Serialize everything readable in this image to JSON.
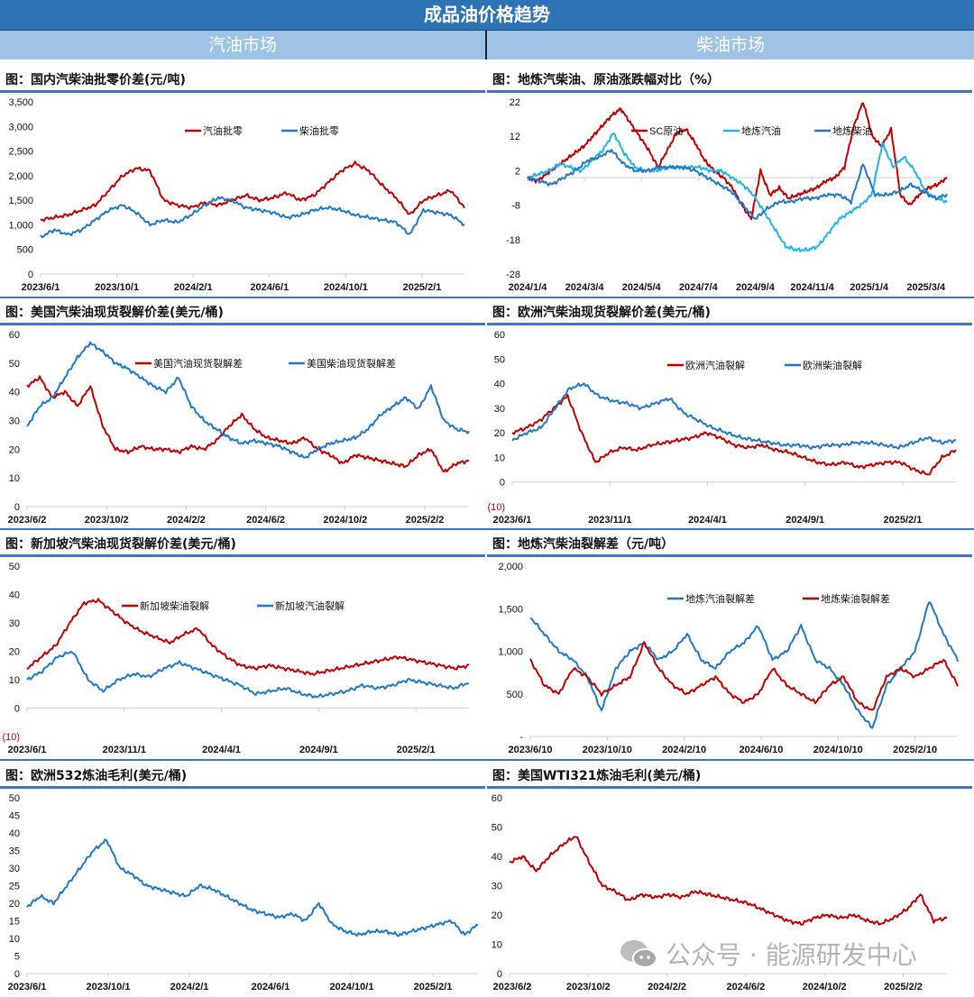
{
  "header": {
    "title": "成品油价格趋势",
    "left_section": "汽油市场",
    "right_section": "柴油市场"
  },
  "watermark": "公众号 · 能源研发中心",
  "colors": {
    "red": "#C00000",
    "blue": "#1F78C8",
    "light_blue": "#1EB4F0",
    "header": "#2E74B5",
    "subheader": "#9DC3E6"
  },
  "chart_data": [
    {
      "type": "line",
      "title": "图：国内汽柴油批零价差(元/吨)",
      "x_start": "2023/6/1",
      "x_end": "2025/3/31",
      "xticks": [
        "2023/6/1",
        "2023/10/1",
        "2024/2/1",
        "2024/6/1",
        "2024/10/1",
        "2025/2/1"
      ],
      "ylim": [
        0,
        3500
      ],
      "yticks": [
        "0",
        "500",
        "1,000",
        "1,500",
        "2,000",
        "2,500",
        "3,000",
        "3,500"
      ],
      "ytick_values": [
        0,
        500,
        1000,
        1500,
        2000,
        2500,
        3000,
        3500
      ],
      "series": [
        {
          "name": "汽油批零",
          "color": "#C00000",
          "values": [
            1100,
            1150,
            1200,
            1300,
            1400,
            1700,
            2000,
            2150,
            2100,
            1500,
            1400,
            1350,
            1450,
            1400,
            1500,
            1600,
            1500,
            1550,
            1650,
            1500,
            1600,
            1850,
            2100,
            2250,
            2100,
            1800,
            1550,
            1200,
            1500,
            1600,
            1700,
            1350
          ]
        },
        {
          "name": "柴油批零",
          "color": "#1F78C8",
          "values": [
            750,
            900,
            800,
            900,
            1100,
            1300,
            1400,
            1250,
            1000,
            1100,
            1050,
            1200,
            1400,
            1550,
            1500,
            1350,
            1300,
            1250,
            1150,
            1200,
            1300,
            1350,
            1300,
            1200,
            1150,
            1100,
            1050,
            800,
            1300,
            1250,
            1200,
            1000
          ]
        }
      ]
    },
    {
      "type": "line",
      "title": "图：地炼汽柴油、原油涨跌幅对比（%）",
      "x_start": "2024/1/4",
      "x_end": "2025/4/10",
      "xticks": [
        "2024/1/4",
        "2024/3/4",
        "2024/5/4",
        "2024/7/4",
        "2024/9/4",
        "2024/11/4",
        "2025/1/4",
        "2025/3/4"
      ],
      "ylim": [
        -28,
        22
      ],
      "yticks": [
        "-28",
        "-18",
        "-8",
        "2",
        "12",
        "22"
      ],
      "ytick_values": [
        -28,
        -18,
        -8,
        2,
        12,
        22
      ],
      "series": [
        {
          "name": "SC原油",
          "color": "#C00000",
          "values": [
            0,
            -1,
            1,
            3,
            5,
            7,
            9,
            12,
            15,
            18,
            20,
            16,
            12,
            8,
            3,
            8,
            13,
            14,
            10,
            5,
            2,
            0,
            -3,
            -8,
            -12,
            2,
            -5,
            -3,
            -6,
            -5,
            -4,
            -3,
            -1,
            0,
            3,
            15,
            22,
            12,
            9,
            14,
            -5,
            -8,
            -5,
            -3,
            -2,
            0
          ]
        },
        {
          "name": "地炼汽油",
          "color": "#1EB4F0",
          "values": [
            0,
            1,
            2,
            4,
            3,
            2,
            5,
            8,
            13,
            7,
            3,
            2,
            2,
            3,
            3,
            3,
            3,
            2,
            2,
            0,
            -2,
            -5,
            -10,
            -15,
            -20,
            -21,
            -21,
            -20,
            -16,
            -12,
            -10,
            -8,
            -5,
            10,
            3,
            6,
            2,
            -4,
            -6,
            -7
          ]
        },
        {
          "name": "地炼柴油",
          "color": "#1F78C8",
          "values": [
            0,
            -1,
            -2,
            0,
            2,
            5,
            6,
            8,
            4,
            2,
            2,
            3,
            3,
            3,
            2,
            0,
            -2,
            -4,
            -8,
            -12,
            -9,
            -7,
            -7,
            -6,
            -6,
            -5,
            -5,
            -7,
            4,
            -5,
            -5,
            -4,
            -2,
            -4,
            -6,
            -5
          ]
        }
      ]
    },
    {
      "type": "line",
      "title": "图：美国汽柴油现货裂解价差(美元/桶)",
      "x_start": "2023/6/2",
      "x_end": "2025/4/1",
      "xticks": [
        "2023/6/2",
        "2023/10/2",
        "2024/2/2",
        "2024/6/2",
        "2024/10/2",
        "2025/2/2"
      ],
      "ylim": [
        0,
        60
      ],
      "yticks": [
        "0",
        "10",
        "20",
        "30",
        "40",
        "50",
        "60"
      ],
      "ytick_values": [
        0,
        10,
        20,
        30,
        40,
        50,
        60
      ],
      "series": [
        {
          "name": "美国汽油现货裂解差",
          "color": "#C00000",
          "values": [
            42,
            45,
            38,
            40,
            35,
            42,
            28,
            20,
            19,
            21,
            20,
            20,
            19,
            21,
            20,
            23,
            28,
            32,
            27,
            24,
            23,
            22,
            24,
            20,
            18,
            15,
            18,
            17,
            16,
            15,
            14,
            18,
            20,
            12,
            15,
            16
          ]
        },
        {
          "name": "美国柴油现货裂解差",
          "color": "#1F78C8",
          "values": [
            28,
            35,
            38,
            45,
            52,
            57,
            54,
            50,
            48,
            45,
            42,
            40,
            45,
            35,
            30,
            27,
            24,
            22,
            23,
            22,
            21,
            19,
            17,
            20,
            22,
            23,
            24,
            27,
            32,
            35,
            38,
            34,
            42,
            30,
            27,
            26
          ]
        }
      ]
    },
    {
      "type": "line",
      "title": "图：欧洲汽柴油现货裂解价差(美元/桶)",
      "x_start": "2023/6/1",
      "x_end": "2025/3/31",
      "xticks": [
        "2023/6/1",
        "2023/11/1",
        "2024/4/1",
        "2024/9/1",
        "2025/2/1"
      ],
      "ylim": [
        -10,
        60
      ],
      "yticks": [
        "(10)",
        "0",
        "10",
        "20",
        "30",
        "40",
        "50",
        "60"
      ],
      "ytick_values": [
        -10,
        0,
        10,
        20,
        30,
        40,
        50,
        60
      ],
      "series": [
        {
          "name": "欧洲汽油裂解",
          "color": "#C00000",
          "values": [
            20,
            22,
            25,
            30,
            35,
            20,
            8,
            12,
            14,
            13,
            15,
            16,
            17,
            18,
            20,
            18,
            15,
            14,
            15,
            13,
            12,
            10,
            8,
            7,
            8,
            6,
            7,
            8,
            8,
            5,
            3,
            10,
            13
          ]
        },
        {
          "name": "欧洲柴油裂解",
          "color": "#1F78C8",
          "values": [
            17,
            20,
            22,
            30,
            38,
            40,
            35,
            33,
            32,
            30,
            32,
            34,
            28,
            25,
            22,
            20,
            18,
            17,
            16,
            15,
            15,
            14,
            15,
            15,
            16,
            16,
            15,
            14,
            16,
            18,
            16,
            17
          ]
        }
      ]
    },
    {
      "type": "line",
      "title": "图：新加坡汽柴油现货裂解价差(美元/桶)",
      "x_start": "2023/6/1",
      "x_end": "2025/3/31",
      "xticks": [
        "2023/6/1",
        "2023/11/1",
        "2024/4/1",
        "2024/9/1",
        "2025/2/1"
      ],
      "ylim": [
        -10,
        50
      ],
      "yticks": [
        "(10)",
        "0",
        "10",
        "20",
        "30",
        "40",
        "50"
      ],
      "ytick_values": [
        -10,
        0,
        10,
        20,
        30,
        40,
        50
      ],
      "series": [
        {
          "name": "新加坡柴油裂解",
          "color": "#C00000",
          "values": [
            14,
            18,
            22,
            30,
            37,
            38,
            34,
            30,
            27,
            25,
            23,
            26,
            28,
            22,
            18,
            15,
            14,
            15,
            14,
            13,
            12,
            13,
            14,
            15,
            16,
            17,
            18,
            17,
            16,
            15,
            14,
            15
          ]
        },
        {
          "name": "新加坡汽油裂解",
          "color": "#1F78C8",
          "values": [
            10,
            13,
            18,
            20,
            10,
            6,
            10,
            12,
            11,
            14,
            16,
            14,
            12,
            10,
            8,
            5,
            6,
            7,
            5,
            4,
            5,
            6,
            8,
            7,
            8,
            10,
            9,
            8,
            7,
            9
          ]
        }
      ]
    },
    {
      "type": "line",
      "title": "图：地炼汽柴油裂解差（元/吨）",
      "x_start": "2023/6/10",
      "x_end": "2025/3/20",
      "xticks": [
        "2023/6/10",
        "2023/10/10",
        "2024/2/10",
        "2024/6/10",
        "2024/10/10",
        "2025/2/10"
      ],
      "ylim": [
        0,
        2000
      ],
      "yticks": [
        "-",
        "500",
        "1,000",
        "1,500",
        "2,000"
      ],
      "ytick_values": [
        0,
        500,
        1000,
        1500,
        2000
      ],
      "series": [
        {
          "name": "地炼汽油裂解差",
          "color": "#1F78C8",
          "values": [
            1400,
            1200,
            1000,
            900,
            700,
            300,
            800,
            1000,
            1100,
            900,
            1000,
            1200,
            900,
            800,
            1000,
            1100,
            1300,
            900,
            1000,
            1300,
            900,
            800,
            600,
            300,
            100,
            600,
            800,
            1000,
            1600,
            1200,
            900
          ]
        },
        {
          "name": "地炼柴油裂解差",
          "color": "#C00000",
          "values": [
            900,
            600,
            500,
            800,
            700,
            500,
            600,
            700,
            1100,
            800,
            600,
            500,
            600,
            700,
            500,
            400,
            500,
            800,
            600,
            500,
            400,
            600,
            700,
            400,
            300,
            700,
            800,
            700,
            800,
            900,
            600
          ]
        }
      ]
    },
    {
      "type": "line",
      "title": "图：欧洲532炼油毛利(美元/桶)",
      "x_start": "2023/6/1",
      "x_end": "2025/3/31",
      "xticks": [
        "2023/6/1",
        "2023/10/1",
        "2024/2/1",
        "2024/6/1",
        "2024/10/1",
        "2025/2/1"
      ],
      "ylim": [
        0,
        50
      ],
      "yticks": [
        "0",
        "5",
        "10",
        "15",
        "20",
        "25",
        "30",
        "35",
        "40",
        "45",
        "50"
      ],
      "ytick_values": [
        0,
        5,
        10,
        15,
        20,
        25,
        30,
        35,
        40,
        45,
        50
      ],
      "series": [
        {
          "color": "#1F78C8",
          "values": [
            19,
            22,
            20,
            25,
            30,
            35,
            38,
            30,
            28,
            25,
            24,
            23,
            22,
            25,
            24,
            22,
            20,
            18,
            17,
            16,
            17,
            15,
            20,
            14,
            12,
            11,
            12,
            12,
            11,
            12,
            13,
            14,
            15,
            11,
            14
          ]
        }
      ]
    },
    {
      "type": "line",
      "title": "图：美国WTI321炼油毛利(美元/桶)",
      "x_start": "2023/6/2",
      "x_end": "2025/3/20",
      "xticks": [
        "2023/6/2",
        "2023/10/2",
        "2024/2/2",
        "2024/6/2",
        "2024/10/2",
        "2025/2/2"
      ],
      "ylim": [
        0,
        60
      ],
      "yticks": [
        "0",
        "10",
        "20",
        "30",
        "40",
        "50",
        "60"
      ],
      "ytick_values": [
        0,
        10,
        20,
        30,
        40,
        50,
        60
      ],
      "series": [
        {
          "color": "#C00000",
          "values": [
            38,
            40,
            35,
            40,
            44,
            47,
            38,
            30,
            28,
            25,
            27,
            26,
            27,
            26,
            28,
            27,
            26,
            25,
            24,
            22,
            20,
            18,
            17,
            19,
            20,
            19,
            20,
            18,
            17,
            19,
            22,
            27,
            18,
            19
          ]
        }
      ]
    }
  ]
}
